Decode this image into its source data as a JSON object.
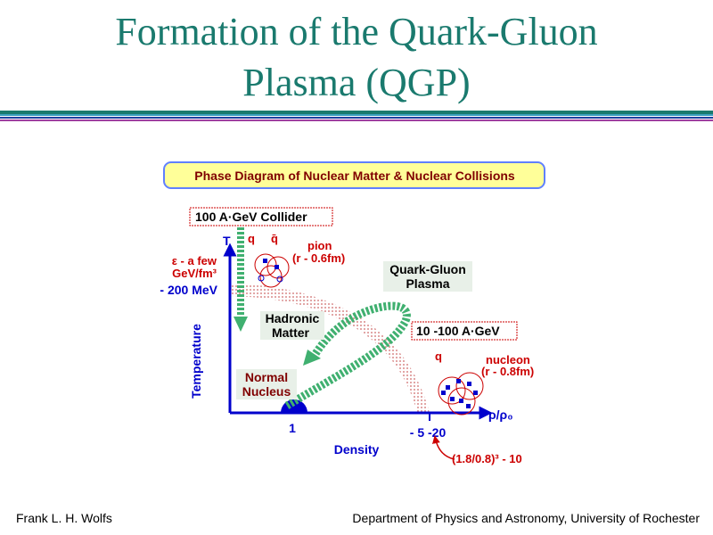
{
  "header": {
    "title_lines": [
      "Formation of the Quark-Gluon",
      "Plasma (QGP)"
    ]
  },
  "diagram": {
    "caption": "Phase Diagram of Nuclear Matter & Nuclear Collisions",
    "collider_label": "100 A·GeV Collider",
    "y_axis_symbol": "T",
    "y_axis_title": "Temperature",
    "x_axis_symbol": "ρ/ρ₀",
    "x_axis_title": "Density",
    "temperature_mark": "- 200 MeV",
    "energy_density": [
      "ε - a few",
      "GeV/fm³"
    ],
    "density_mark_1": "1",
    "density_mark_2": "- 5 -20",
    "density_note": "(1.8/0.8)³  - 10",
    "pion": {
      "quark": "q",
      "antiquark": "q̄",
      "name": "pion",
      "radius": "(r - 0.6fm)"
    },
    "nucleon": {
      "quark": "q",
      "name": "nucleon",
      "radius": "(r - 0.8fm)"
    },
    "qgp_region": [
      "Quark-Gluon",
      "Plasma"
    ],
    "hadronic_region": [
      "Hadronic",
      "Matter"
    ],
    "normal_region": [
      "Normal",
      "Nucleus"
    ],
    "sps_label": "10 -100 A·GeV"
  },
  "footer": {
    "author": "Frank L. H. Wolfs",
    "affiliation": "Department of Physics and Astronomy, University of Rochester"
  }
}
